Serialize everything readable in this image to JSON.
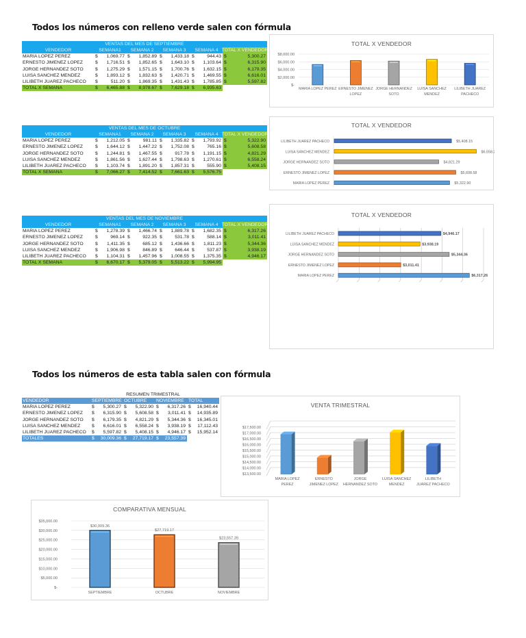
{
  "headings": {
    "top": "Todos los números con relleno verde salen con fórmula",
    "bottom": "Todos los números de esta tabla salen con fórmula"
  },
  "colors": {
    "header_blue": "#1aa7ec",
    "formula_green": "#8cc83c",
    "summary_blue": "#5b9bd5",
    "series": [
      "#5b9bd5",
      "#ed7d31",
      "#a5a5a5",
      "#ffc000",
      "#4472c4"
    ]
  },
  "monthly_tables": [
    {
      "title": "VENTAS DEL MES DE SEPTIEMBRE",
      "headers": [
        "VENDEDOR",
        "SEMANA1",
        "SEMANA 2",
        "SEMANA 3",
        "SEMANA 4",
        "TOTAL X VENDEDOR"
      ],
      "rows": [
        {
          "name": "MARIA  LOPEZ   PEREZ",
          "weeks": [
            "1,069.77",
            "1,852.89",
            "1,433.18",
            "944.43"
          ],
          "total": "5,300.27"
        },
        {
          "name": "ERNESTO JIMENEZ  LOPEZ",
          "weeks": [
            "1,716.51",
            "1,852.65",
            "1,643.10",
            "1,103.64"
          ],
          "total": "6,315.90"
        },
        {
          "name": "JORGE HERNANDEZ    SOTO",
          "weeks": [
            "1,275.29",
            "1,571.15",
            "1,700.76",
            "1,632.15"
          ],
          "total": "6,179.35"
        },
        {
          "name": "LUISA SANCHEZ MENDEZ",
          "weeks": [
            "1,893.12",
            "1,832.63",
            "1,420.71",
            "1,469.55"
          ],
          "total": "6,616.01"
        },
        {
          "name": "LILIBETH   JUAREZ PACHECO",
          "weeks": [
            "511.20",
            "1,869.35",
            "1,431.43",
            "1,785.85"
          ],
          "total": "5,597.82"
        }
      ],
      "total_label": "TOTAL X  SEMANA",
      "week_totals": [
        "6,465.88",
        "8,978.67",
        "7,629.18",
        "6,935.63"
      ]
    },
    {
      "title": "VENTAS DEL MES DE OCTUBRE",
      "headers": [
        "VENDEDOR",
        "SEMANA1",
        "SEMANA 2",
        "SEMANA 3",
        "SEMANA 4",
        "TOTAL X VENDEDOR"
      ],
      "rows": [
        {
          "name": "MARIA  LOPEZ   PEREZ",
          "weeks": [
            "1,212.05",
            "981.11",
            "1,335.82",
            "1,793.92"
          ],
          "total": "5,322.90"
        },
        {
          "name": "ERNESTO JIMENEZ  LOPEZ",
          "weeks": [
            "1,644.12",
            "1,447.22",
            "1,752.08",
            "765.16"
          ],
          "total": "5,608.58"
        },
        {
          "name": "JORGE HERNANDEZ    SOTO",
          "weeks": [
            "1,244.81",
            "1,467.55",
            "917.78",
            "1,191.15"
          ],
          "total": "4,821.29"
        },
        {
          "name": "LUISA SANCHEZ MENDEZ",
          "weeks": [
            "1,861.56",
            "1,627.44",
            "1,798.63",
            "1,270.61"
          ],
          "total": "6,558.24"
        },
        {
          "name": "LILIBETH   JUAREZ PACHECO",
          "weeks": [
            "1,103.74",
            "1,891.20",
            "1,857.31",
            "555.90"
          ],
          "total": "5,408.15"
        }
      ],
      "total_label": "TOTAL X  SEMANA",
      "week_totals": [
        "7,066.27",
        "7,414.52",
        "7,661.63",
        "5,576.75"
      ]
    },
    {
      "title": "VENTAS DEL MES DE NOVIEMBRE",
      "headers": [
        "VENDEDOR",
        "SEMANA1",
        "SEMANA 2",
        "SEMANA 3",
        "SEMANA 4",
        "TOTAL X VENDEDOR"
      ],
      "rows": [
        {
          "name": "MARIA  LOPEZ   PEREZ",
          "weeks": [
            "1,278.39",
            "1,466.74",
            "1,889.78",
            "1,682.35"
          ],
          "total": "6,317.26"
        },
        {
          "name": "ERNESTO JIMENEZ  LOPEZ",
          "weeks": [
            "969.14",
            "922.35",
            "531.78",
            "588.14"
          ],
          "total": "3,011.41"
        },
        {
          "name": "JORGE HERNANDEZ    SOTO",
          "weeks": [
            "1,411.35",
            "685.12",
            "1,436.66",
            "1,811.23"
          ],
          "total": "5,344.36"
        },
        {
          "name": "LUISA SANCHEZ MENDEZ",
          "weeks": [
            "1,906.98",
            "846.89",
            "646.44",
            "537.87"
          ],
          "total": "3,938.19"
        },
        {
          "name": "LILIBETH   JUAREZ PACHECO",
          "weeks": [
            "1,104.31",
            "1,457.96",
            "1,008.55",
            "1,375.35"
          ],
          "total": "4,946.17"
        }
      ],
      "total_label": "TOTAL X  SEMANA",
      "week_totals": [
        "6,670.17",
        "5,379.05",
        "5,513.22",
        "5,994.95"
      ]
    }
  ],
  "summary_table": {
    "title": "RESUMEN TRIMESTRAL",
    "headers": [
      "VENDEDOR",
      "SEPTIEMBRE",
      "OCTUBRE",
      "NOVIEMBRE",
      "TOTAL"
    ],
    "rows": [
      {
        "name": "MARIA  LOPEZ   PEREZ",
        "months": [
          "5,300.27",
          "5,322.90",
          "6,317.26"
        ],
        "total": "16,940.44"
      },
      {
        "name": "ERNESTO JIMENEZ  LOPEZ",
        "months": [
          "6,315.90",
          "5,608.58",
          "3,011.41"
        ],
        "total": "14,935.89"
      },
      {
        "name": "JORGE HERNANDEZ    SOTO",
        "months": [
          "6,179.35",
          "4,821.29",
          "5,344.36"
        ],
        "total": "16,345.01"
      },
      {
        "name": "LUISA SANCHEZ MENDEZ",
        "months": [
          "6,616.01",
          "6,558.24",
          "3,938.19"
        ],
        "total": "17,112.43"
      },
      {
        "name": "LILIBETH   JUAREZ PACHECO",
        "months": [
          "5,597.82",
          "5,408.15",
          "4,946.17"
        ],
        "total": "15,952.14"
      }
    ],
    "total_label": "TOTALES",
    "month_totals": [
      "30,009.36",
      "27,719.17",
      "23,557.39"
    ]
  },
  "currency_symbol": "$",
  "chart_data": [
    {
      "id": "sept-vendor",
      "type": "bar",
      "title": "TOTAL X VENDEDOR",
      "categories": [
        "MARIA  LOPEZ PEREZ",
        "ERNESTO JIMENEZ LOPEZ",
        "JORGE HERNANDEZ SOTO",
        "LUISA SANCHEZ MENDEZ",
        "LILIBETH JUAREZ PACHECO"
      ],
      "values": [
        5300.27,
        6315.9,
        6179.35,
        6616.01,
        5597.82
      ],
      "yticks": [
        "$8,000.00",
        "$6,000.00",
        "$4,000.00",
        "$2,000.00",
        "$-"
      ],
      "ylim": [
        0,
        8000
      ],
      "grid": true,
      "orientation": "vertical"
    },
    {
      "id": "oct-vendor",
      "type": "bar",
      "title": "TOTAL X VENDEDOR",
      "categories": [
        "LILIBETH   JUAREZ  PACHECO",
        "LUISA  SANCHEZ MENDEZ",
        "JORGE HERNANDEZ    SOTO",
        "ERNESTO  JIMENEZ   LOPEZ",
        "MARIA   LOPEZ    PEREZ"
      ],
      "values": [
        5408.15,
        6558.24,
        4821.29,
        5608.58,
        5322.9
      ],
      "data_labels": [
        "$5,408.15",
        "$6,558.24",
        "$4,821.29",
        "$5,608.58",
        "$5,322.90"
      ],
      "grid": false,
      "orientation": "horizontal"
    },
    {
      "id": "nov-vendor",
      "type": "bar",
      "title": "TOTAL X VENDEDOR",
      "categories": [
        "LILIBETH   JUAREZ  PACHECO",
        "LUISA  SANCHEZ MENDEZ",
        "JORGE HERNANDEZ    SOTO",
        "ERNESTO  JIMENEZ   LOPEZ",
        "MARIA   LOPEZ    PEREZ"
      ],
      "values": [
        4946.17,
        3938.19,
        5344.36,
        3011.41,
        6317.26
      ],
      "data_labels": [
        "$4,946.17",
        "$3,938.19",
        "$5,344.36",
        "$3,011.41",
        "$6,317.26"
      ],
      "grid": true,
      "orientation": "horizontal"
    },
    {
      "id": "quarterly",
      "type": "bar",
      "title": "VENTA TRIMESTRAL",
      "categories": [
        "MARIA  LOPEZ PEREZ",
        "ERNESTO JIMENEZ  LOPEZ",
        "JORGE HERNANDEZ SOTO",
        "LUISA  SANCHEZ MENDEZ",
        "LILIBETH JUAREZ PACHECO"
      ],
      "values": [
        16940.44,
        14935.89,
        16345.01,
        17112.43,
        15952.14
      ],
      "yticks": [
        "$17,500.00",
        "$17,000.00",
        "$16,500.00",
        "$16,000.00",
        "$15,500.00",
        "$15,000.00",
        "$14,500.00",
        "$14,000.00",
        "$13,500.00"
      ],
      "ylim": [
        13500,
        17500
      ],
      "grid": true,
      "orientation": "vertical-3d"
    },
    {
      "id": "monthly-compare",
      "type": "bar",
      "title": "COMPARATIVA MENSUAL",
      "categories": [
        "SEPTIEMBRE",
        "OCTUBRE",
        "NOVIEMBRE"
      ],
      "values": [
        30009.36,
        27719.17,
        23557.39
      ],
      "data_labels": [
        "$30,009.36",
        "$27,719.17",
        "$23,557.39"
      ],
      "yticks": [
        "$35,000.00",
        "$30,000.00",
        "$25,000.00",
        "$20,000.00",
        "$15,000.00",
        "$10,000.00",
        "$5,000.00",
        "$-"
      ],
      "ylim": [
        0,
        35000
      ],
      "grid": true,
      "orientation": "vertical"
    }
  ]
}
